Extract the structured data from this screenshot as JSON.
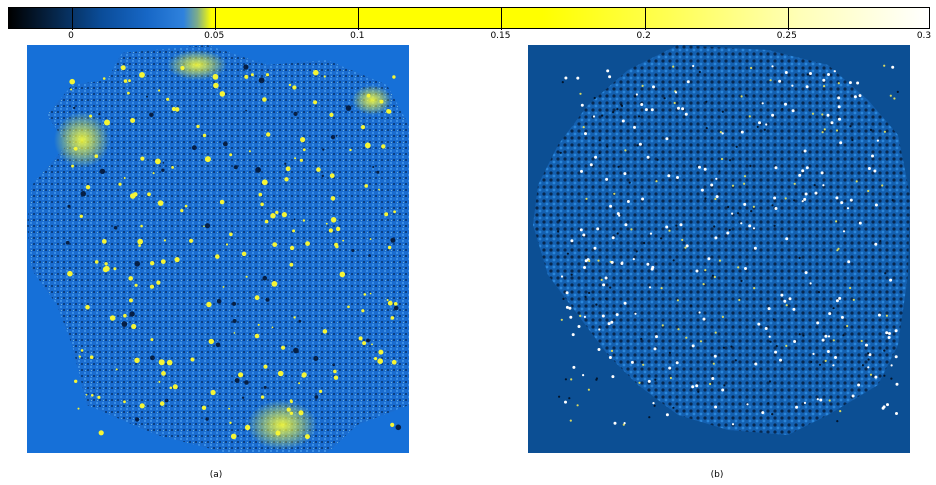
{
  "colorbar": {
    "tick_labels": [
      "0",
      "0.05",
      "0.1",
      "0.15",
      "0.2",
      "0.25",
      "0.3"
    ],
    "range": [
      -0.022,
      0.3
    ]
  },
  "panels": [
    {
      "caption": "(a)"
    },
    {
      "caption": "(b)"
    }
  ],
  "colors": {
    "background_a": "#1670d8",
    "background_b": "#0c4f94",
    "highlight": "#ffff00",
    "dark": "#000000"
  }
}
